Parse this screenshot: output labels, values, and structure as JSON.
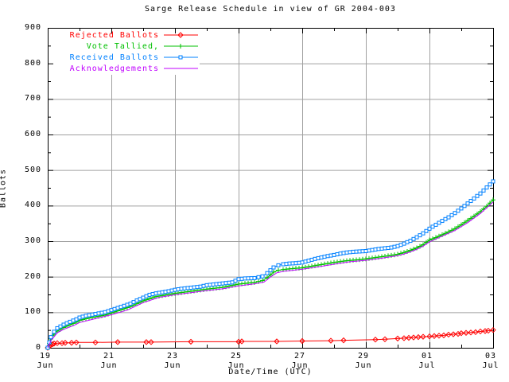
{
  "chart_data": {
    "type": "line",
    "title": "Sarge Release Schedule in view of GR 2004-003",
    "xlabel": "Date/Time (UTC)",
    "ylabel": "Ballots",
    "xlim_days": [
      0,
      14
    ],
    "ylim": [
      0,
      900
    ],
    "grid": true,
    "legend_position": "top-left",
    "colors": {
      "background": "#ffffff",
      "border": "#000000",
      "text": "#000000",
      "grid": "#a0a0a0",
      "rejected": "#ff0000",
      "tallied": "#00c000",
      "received": "#0080ff",
      "acknowledgements": "#c000ff"
    },
    "y_ticks": [
      0,
      100,
      200,
      300,
      400,
      500,
      600,
      700,
      800,
      900
    ],
    "y_minor_step": 50,
    "x_ticks": [
      {
        "day": 0,
        "label": "19",
        "sub": "Jun"
      },
      {
        "day": 2,
        "label": "21",
        "sub": "Jun"
      },
      {
        "day": 4,
        "label": "23",
        "sub": "Jun"
      },
      {
        "day": 6,
        "label": "25",
        "sub": "Jun"
      },
      {
        "day": 8,
        "label": "27",
        "sub": "Jun"
      },
      {
        "day": 10,
        "label": "29",
        "sub": "Jun"
      },
      {
        "day": 12,
        "label": "01",
        "sub": "Jul"
      },
      {
        "day": 14,
        "label": "03",
        "sub": "Jul"
      }
    ],
    "x_minor_days": [
      1,
      3,
      5,
      7,
      9,
      11,
      13
    ],
    "series": [
      {
        "label": "Rejected Ballots",
        "color": "#ff0000",
        "marker": "diamond",
        "marker_mode": "points",
        "points": [
          [
            0,
            0
          ],
          [
            0.05,
            4
          ],
          [
            0.1,
            8
          ],
          [
            0.15,
            10
          ],
          [
            0.2,
            12
          ],
          [
            0.3,
            13
          ],
          [
            0.45,
            13
          ],
          [
            0.55,
            14
          ],
          [
            0.75,
            14
          ],
          [
            0.9,
            15
          ],
          [
            1.5,
            15
          ],
          [
            2.2,
            16
          ],
          [
            3.1,
            16
          ],
          [
            3.25,
            16
          ],
          [
            4.5,
            17
          ],
          [
            6.0,
            17
          ],
          [
            6.1,
            18
          ],
          [
            7.2,
            18
          ],
          [
            8.0,
            19
          ],
          [
            8.9,
            20
          ],
          [
            9.3,
            21
          ],
          [
            10.3,
            23
          ],
          [
            10.6,
            24
          ],
          [
            11.0,
            26
          ],
          [
            11.2,
            27
          ],
          [
            11.35,
            28
          ],
          [
            11.5,
            29
          ],
          [
            11.65,
            30
          ],
          [
            11.8,
            31
          ],
          [
            12.0,
            32
          ],
          [
            12.15,
            33
          ],
          [
            12.3,
            34
          ],
          [
            12.45,
            35
          ],
          [
            12.6,
            37
          ],
          [
            12.75,
            38
          ],
          [
            12.9,
            39
          ],
          [
            13.0,
            41
          ],
          [
            13.15,
            42
          ],
          [
            13.3,
            43
          ],
          [
            13.45,
            44
          ],
          [
            13.6,
            46
          ],
          [
            13.75,
            47
          ],
          [
            13.85,
            48
          ],
          [
            14.0,
            50
          ]
        ]
      },
      {
        "label": "Vote Tallied,",
        "color": "#00c000",
        "marker": "plus",
        "marker_mode": "dense",
        "points": [
          [
            0,
            0
          ],
          [
            0.05,
            12
          ],
          [
            0.1,
            25
          ],
          [
            0.2,
            38
          ],
          [
            0.3,
            47
          ],
          [
            0.5,
            57
          ],
          [
            0.7,
            65
          ],
          [
            0.9,
            72
          ],
          [
            1.0,
            77
          ],
          [
            1.2,
            82
          ],
          [
            1.5,
            87
          ],
          [
            1.8,
            92
          ],
          [
            2.0,
            98
          ],
          [
            2.2,
            104
          ],
          [
            2.4,
            110
          ],
          [
            2.6,
            116
          ],
          [
            2.8,
            124
          ],
          [
            3.0,
            132
          ],
          [
            3.4,
            144
          ],
          [
            3.8,
            150
          ],
          [
            4.0,
            153
          ],
          [
            4.5,
            159
          ],
          [
            5.0,
            165
          ],
          [
            5.5,
            170
          ],
          [
            6.0,
            179
          ],
          [
            6.5,
            184
          ],
          [
            6.75,
            189
          ],
          [
            6.9,
            197
          ],
          [
            7.0,
            205
          ],
          [
            7.1,
            213
          ],
          [
            7.25,
            218
          ],
          [
            7.4,
            220
          ],
          [
            7.6,
            222
          ],
          [
            8.0,
            225
          ],
          [
            8.4,
            231
          ],
          [
            8.8,
            237
          ],
          [
            9.0,
            240
          ],
          [
            9.4,
            245
          ],
          [
            9.8,
            248
          ],
          [
            10.0,
            250
          ],
          [
            10.4,
            255
          ],
          [
            10.8,
            260
          ],
          [
            11.0,
            263
          ],
          [
            11.2,
            268
          ],
          [
            11.4,
            274
          ],
          [
            11.6,
            281
          ],
          [
            11.8,
            290
          ],
          [
            12.0,
            303
          ],
          [
            12.2,
            310
          ],
          [
            12.4,
            318
          ],
          [
            12.6,
            326
          ],
          [
            12.8,
            335
          ],
          [
            13.0,
            346
          ],
          [
            13.2,
            358
          ],
          [
            13.4,
            370
          ],
          [
            13.6,
            383
          ],
          [
            13.8,
            398
          ],
          [
            14.0,
            416
          ]
        ]
      },
      {
        "label": "Received Ballots",
        "color": "#0080ff",
        "marker": "square",
        "marker_mode": "dense",
        "points": [
          [
            0,
            0
          ],
          [
            0.05,
            15
          ],
          [
            0.1,
            30
          ],
          [
            0.2,
            45
          ],
          [
            0.3,
            55
          ],
          [
            0.5,
            65
          ],
          [
            0.7,
            73
          ],
          [
            0.9,
            80
          ],
          [
            1.0,
            85
          ],
          [
            1.2,
            90
          ],
          [
            1.5,
            95
          ],
          [
            1.8,
            100
          ],
          [
            2.0,
            106
          ],
          [
            2.2,
            112
          ],
          [
            2.4,
            118
          ],
          [
            2.6,
            124
          ],
          [
            2.8,
            133
          ],
          [
            3.0,
            141
          ],
          [
            3.2,
            149
          ],
          [
            3.4,
            153
          ],
          [
            3.6,
            156
          ],
          [
            3.8,
            159
          ],
          [
            4.0,
            163
          ],
          [
            4.2,
            166
          ],
          [
            4.5,
            169
          ],
          [
            4.8,
            172
          ],
          [
            5.0,
            176
          ],
          [
            5.3,
            179
          ],
          [
            5.5,
            181
          ],
          [
            5.8,
            184
          ],
          [
            6.0,
            193
          ],
          [
            6.2,
            195
          ],
          [
            6.5,
            196
          ],
          [
            6.75,
            201
          ],
          [
            6.9,
            210
          ],
          [
            7.0,
            218
          ],
          [
            7.1,
            226
          ],
          [
            7.25,
            232
          ],
          [
            7.4,
            235
          ],
          [
            7.6,
            237
          ],
          [
            7.8,
            238
          ],
          [
            8.0,
            240
          ],
          [
            8.2,
            245
          ],
          [
            8.4,
            250
          ],
          [
            8.6,
            254
          ],
          [
            8.8,
            258
          ],
          [
            9.0,
            261
          ],
          [
            9.2,
            265
          ],
          [
            9.4,
            268
          ],
          [
            9.6,
            270
          ],
          [
            9.8,
            271
          ],
          [
            10.0,
            272
          ],
          [
            10.2,
            275
          ],
          [
            10.4,
            278
          ],
          [
            10.6,
            280
          ],
          [
            10.8,
            282
          ],
          [
            11.0,
            286
          ],
          [
            11.2,
            293
          ],
          [
            11.4,
            301
          ],
          [
            11.6,
            311
          ],
          [
            11.8,
            322
          ],
          [
            12.0,
            335
          ],
          [
            12.2,
            346
          ],
          [
            12.4,
            357
          ],
          [
            12.6,
            367
          ],
          [
            12.8,
            379
          ],
          [
            13.0,
            392
          ],
          [
            13.2,
            406
          ],
          [
            13.4,
            420
          ],
          [
            13.6,
            434
          ],
          [
            13.8,
            451
          ],
          [
            14.0,
            468
          ]
        ]
      },
      {
        "label": "Acknowledgements",
        "color": "#c000ff",
        "marker": "none",
        "marker_mode": "none",
        "points": [
          [
            0,
            0
          ],
          [
            0.1,
            20
          ],
          [
            0.3,
            42
          ],
          [
            0.5,
            52
          ],
          [
            0.8,
            62
          ],
          [
            1.0,
            71
          ],
          [
            1.5,
            82
          ],
          [
            2.0,
            93
          ],
          [
            2.5,
            106
          ],
          [
            3.0,
            127
          ],
          [
            3.5,
            142
          ],
          [
            4.0,
            149
          ],
          [
            4.5,
            155
          ],
          [
            5.0,
            161
          ],
          [
            5.5,
            166
          ],
          [
            6.0,
            174
          ],
          [
            6.5,
            180
          ],
          [
            6.8,
            185
          ],
          [
            7.0,
            199
          ],
          [
            7.2,
            211
          ],
          [
            7.4,
            215
          ],
          [
            7.6,
            217
          ],
          [
            8.0,
            221
          ],
          [
            8.5,
            228
          ],
          [
            9.0,
            235
          ],
          [
            9.5,
            242
          ],
          [
            10.0,
            246
          ],
          [
            10.5,
            252
          ],
          [
            11.0,
            259
          ],
          [
            11.2,
            264
          ],
          [
            11.4,
            270
          ],
          [
            11.6,
            277
          ],
          [
            11.8,
            286
          ],
          [
            12.0,
            298
          ],
          [
            12.4,
            314
          ],
          [
            12.8,
            330
          ],
          [
            13.2,
            352
          ],
          [
            13.6,
            378
          ],
          [
            14.0,
            410
          ]
        ]
      }
    ]
  }
}
